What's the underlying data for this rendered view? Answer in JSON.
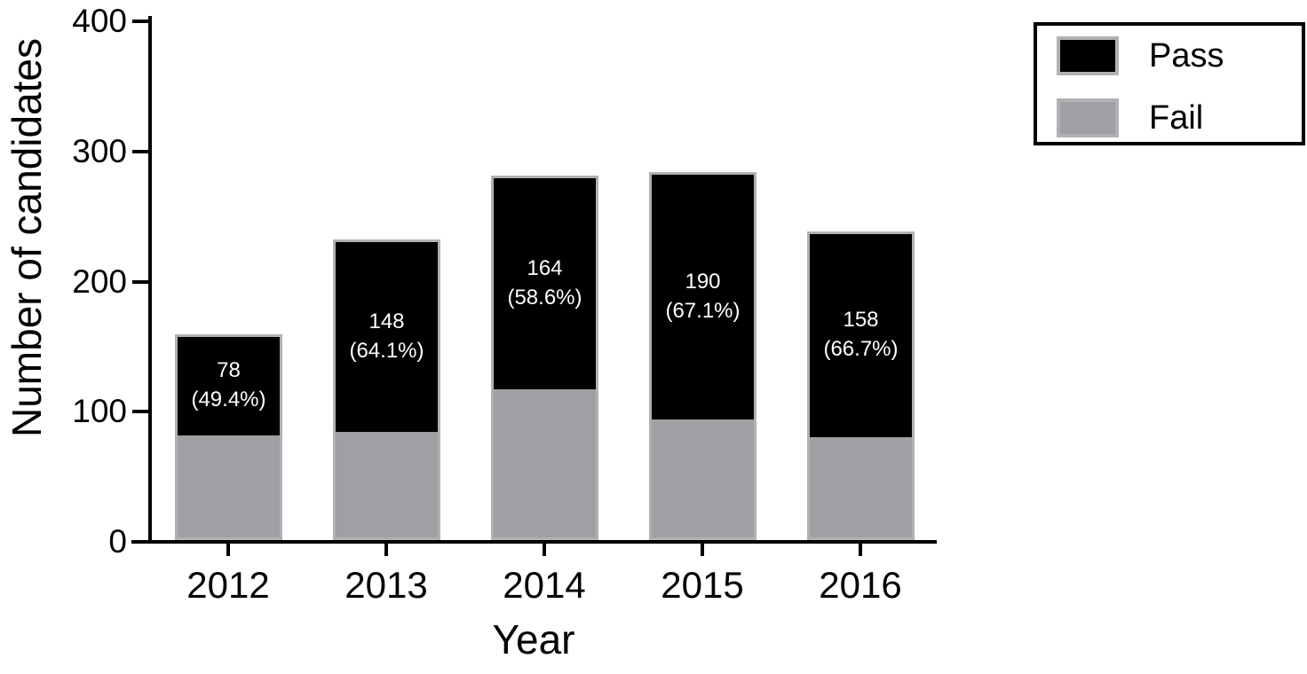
{
  "chart_data": {
    "type": "bar",
    "stacked": true,
    "title": "",
    "xlabel": "Year",
    "ylabel": "Number of candidates",
    "categories": [
      "2012",
      "2013",
      "2014",
      "2015",
      "2016"
    ],
    "series": [
      {
        "name": "Pass",
        "color": "#000000",
        "values": [
          78,
          148,
          164,
          190,
          158
        ]
      },
      {
        "name": "Fail",
        "color": "#9ea0a3",
        "values": [
          80,
          83,
          116,
          93,
          79
        ]
      }
    ],
    "totals": [
      158,
      231,
      280,
      283,
      237
    ],
    "bar_labels": [
      {
        "count": "78",
        "percent": "(49.4%)"
      },
      {
        "count": "148",
        "percent": "(64.1%)"
      },
      {
        "count": "164",
        "percent": "(58.6%)"
      },
      {
        "count": "190",
        "percent": "(67.1%)"
      },
      {
        "count": "158",
        "percent": "(66.7%)"
      }
    ],
    "ylim": [
      0,
      400
    ],
    "yticks": [
      0,
      100,
      200,
      300,
      400
    ],
    "grid": false,
    "legend_position": "top-right",
    "legend_items": [
      {
        "label": "Pass",
        "color": "#000000"
      },
      {
        "label": "Fail",
        "color": "#9ea0a3"
      }
    ]
  },
  "colors": {
    "pass": "#000000",
    "fail": "#9ea0a3",
    "bar_border": "#b0b1b4",
    "axis": "#000000",
    "bar_label_text": "#ffffff",
    "legend_border": "#000000",
    "background": "#ffffff"
  }
}
